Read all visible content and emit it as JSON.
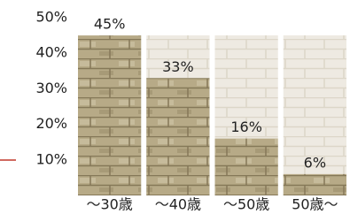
{
  "chart_data": {
    "type": "bar",
    "categories": [
      "～30歳",
      "～40歳",
      "～50歳",
      "50歳～"
    ],
    "values": [
      45,
      33,
      16,
      6
    ],
    "value_labels": [
      "45%",
      "33%",
      "16%",
      "6%"
    ],
    "color": "#b3a581",
    "ylim": [
      0,
      50
    ],
    "yticks": [
      {
        "value": 10,
        "label": "10%"
      },
      {
        "value": 20,
        "label": "20%"
      },
      {
        "value": 30,
        "label": "30%"
      },
      {
        "value": 40,
        "label": "40%"
      },
      {
        "value": 50,
        "label": "50%"
      }
    ]
  }
}
